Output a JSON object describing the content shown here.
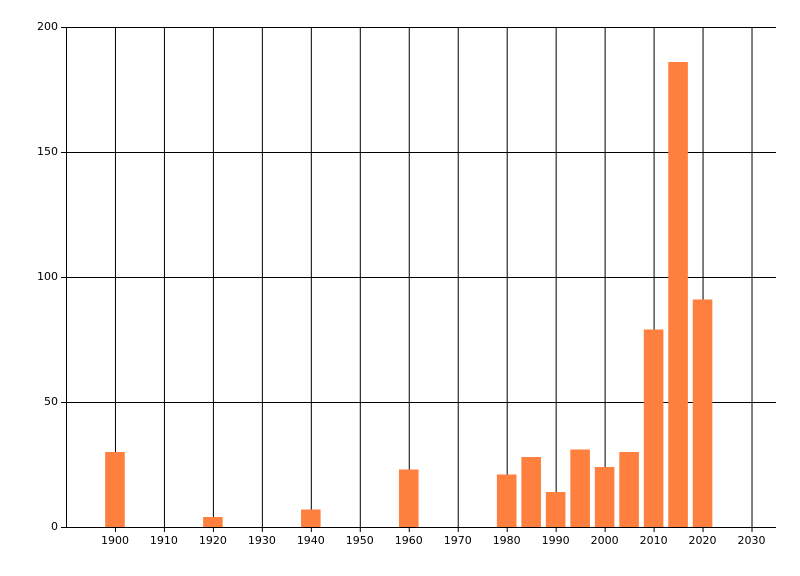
{
  "chart_data": {
    "type": "bar",
    "x": [
      1900,
      1920,
      1940,
      1960,
      1980,
      1985,
      1990,
      1995,
      2000,
      2005,
      2010,
      2015,
      2020
    ],
    "values": [
      30,
      4,
      7,
      23,
      21,
      28,
      14,
      31,
      24,
      30,
      79,
      186,
      91
    ],
    "color": "#ff7f3f",
    "xlim": [
      1890,
      2035
    ],
    "xticks": [
      1900,
      1910,
      1920,
      1930,
      1940,
      1950,
      1960,
      1970,
      1980,
      1990,
      2000,
      2010,
      2020,
      2030
    ],
    "ylim": [
      0,
      200
    ],
    "yticks": [
      0,
      50,
      100,
      150,
      200
    ],
    "grid": true
  }
}
